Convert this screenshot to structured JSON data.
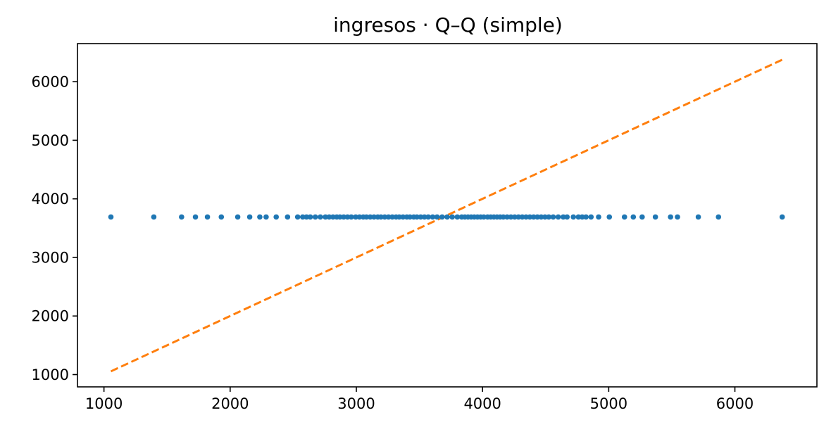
{
  "chart_data": {
    "type": "scatter",
    "title": "ingresos · Q–Q (simple)",
    "xlabel": "",
    "ylabel": "",
    "xlim": [
      790,
      6650
    ],
    "ylim": [
      790,
      6650
    ],
    "x_ticks": [
      1000,
      2000,
      3000,
      4000,
      5000,
      6000
    ],
    "y_ticks": [
      1000,
      2000,
      3000,
      4000,
      5000,
      6000
    ],
    "x_tick_labels": [
      "1000",
      "2000",
      "3000",
      "4000",
      "5000",
      "6000"
    ],
    "y_tick_labels": [
      "1000",
      "2000",
      "3000",
      "4000",
      "5000",
      "6000"
    ],
    "grid": false,
    "legend": "none",
    "colors": {
      "points": "#1f77b4",
      "reference_line": "#ff7f0e"
    },
    "series": [
      {
        "kind": "points",
        "y_constant": 3690,
        "x": [
          1055,
          1395,
          1615,
          1725,
          1820,
          1930,
          2060,
          2155,
          2235,
          2285,
          2365,
          2455,
          2535,
          2575,
          2605,
          2635,
          2675,
          2715,
          2755,
          2785,
          2815,
          2845,
          2870,
          2900,
          2930,
          2960,
          2995,
          3025,
          3055,
          3080,
          3110,
          3140,
          3170,
          3195,
          3225,
          3255,
          3285,
          3315,
          3340,
          3370,
          3400,
          3425,
          3455,
          3480,
          3510,
          3540,
          3570,
          3605,
          3640,
          3680,
          3720,
          3760,
          3800,
          3835,
          3860,
          3885,
          3910,
          3935,
          3960,
          3985,
          4010,
          4040,
          4065,
          4090,
          4115,
          4140,
          4165,
          4195,
          4225,
          4255,
          4285,
          4315,
          4345,
          4375,
          4405,
          4435,
          4465,
          4495,
          4525,
          4560,
          4600,
          4640,
          4670,
          4720,
          4760,
          4790,
          4820,
          4860,
          4920,
          5005,
          5125,
          5195,
          5265,
          5370,
          5490,
          5545,
          5710,
          5870,
          6375
        ]
      },
      {
        "kind": "reference-line",
        "style": "dashed",
        "x": [
          1055,
          6375
        ],
        "y": [
          1055,
          6375
        ]
      }
    ]
  }
}
